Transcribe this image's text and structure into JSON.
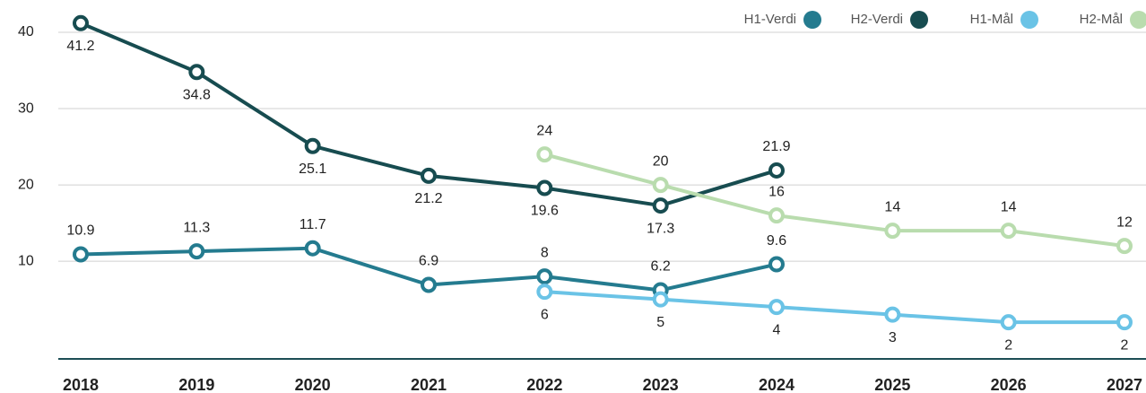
{
  "chart_data": {
    "type": "line",
    "categories": [
      "2018",
      "2019",
      "2020",
      "2021",
      "2022",
      "2023",
      "2024",
      "2025",
      "2026",
      "2027"
    ],
    "series": [
      {
        "name": "H1-Verdi",
        "color": "#247b8f",
        "values": [
          10.9,
          11.3,
          11.7,
          6.9,
          8,
          6.2,
          9.6,
          null,
          null,
          null
        ]
      },
      {
        "name": "H2-Verdi",
        "color": "#174c50",
        "values": [
          41.2,
          34.8,
          25.1,
          21.2,
          19.6,
          17.3,
          21.9,
          null,
          null,
          null
        ]
      },
      {
        "name": "H1-Mål",
        "color": "#6ac3e6",
        "values": [
          null,
          null,
          null,
          null,
          6,
          5,
          4,
          3,
          2,
          2
        ]
      },
      {
        "name": "H2-Mål",
        "color": "#b9dcae",
        "values": [
          null,
          null,
          null,
          null,
          24,
          20,
          16,
          14,
          14,
          12
        ]
      }
    ],
    "ylim": [
      -2.8,
      44
    ],
    "yticks": [
      10,
      20,
      30,
      40
    ],
    "grid": true,
    "legend": "top-right"
  }
}
